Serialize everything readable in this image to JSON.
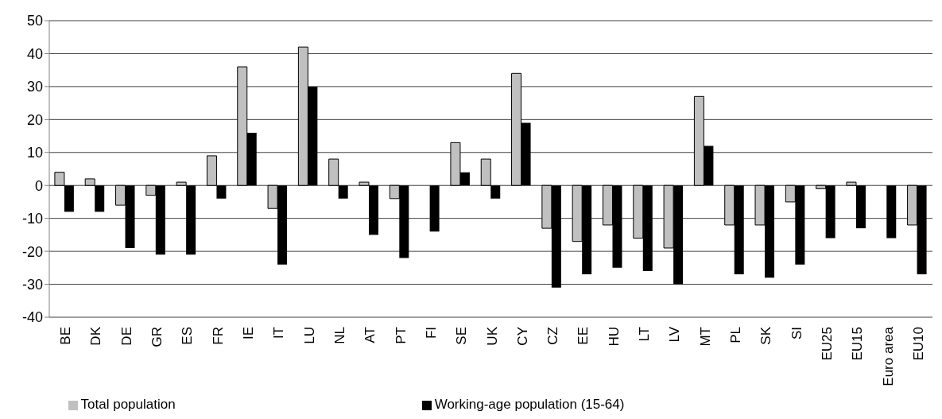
{
  "chart_data": {
    "type": "bar",
    "categories": [
      "BE",
      "DK",
      "DE",
      "GR",
      "ES",
      "FR",
      "IE",
      "IT",
      "LU",
      "NL",
      "AT",
      "PT",
      "FI",
      "SE",
      "UK",
      "CY",
      "CZ",
      "EE",
      "HU",
      "LT",
      "LV",
      "MT",
      "PL",
      "SK",
      "SI",
      "EU25",
      "EU15",
      "Euro area",
      "EU10"
    ],
    "series": [
      {
        "name": "Total population",
        "color": "#c0c0c0",
        "values": [
          4,
          2,
          -6,
          -3,
          1,
          9,
          36,
          -7,
          42,
          8,
          1,
          -4,
          0,
          13,
          8,
          34,
          -13,
          -17,
          -12,
          -16,
          -19,
          27,
          -12,
          -12,
          -5,
          -1,
          1,
          0,
          -12
        ]
      },
      {
        "name": "Working-age population (15-64)",
        "color": "#000000",
        "values": [
          -8,
          -8,
          -19,
          -21,
          -21,
          -4,
          16,
          -24,
          30,
          -4,
          -15,
          -22,
          -14,
          4,
          -4,
          19,
          -31,
          -27,
          -25,
          -26,
          -30,
          12,
          -27,
          -28,
          -24,
          -16,
          -13,
          -16,
          -27
        ]
      }
    ],
    "ylim": [
      -40,
      50
    ],
    "yticks": [
      -40,
      -30,
      -20,
      -10,
      0,
      10,
      20,
      30,
      40,
      50
    ],
    "grid": "y",
    "legend": "bottom"
  }
}
